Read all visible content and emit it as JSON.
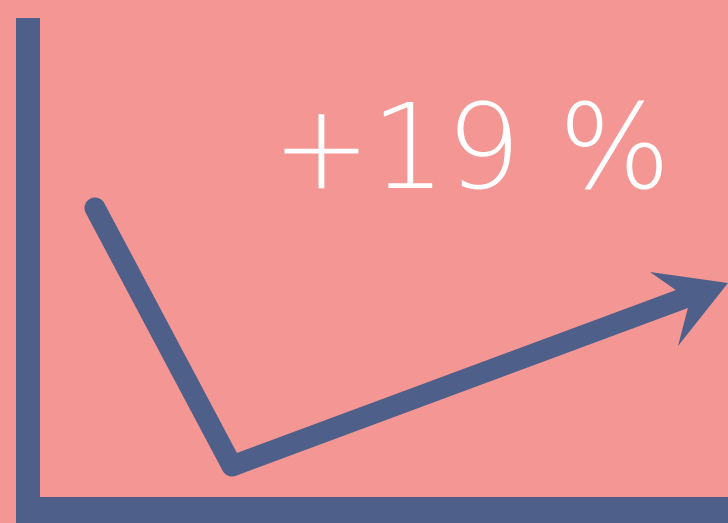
{
  "headline": "+19 %"
}
